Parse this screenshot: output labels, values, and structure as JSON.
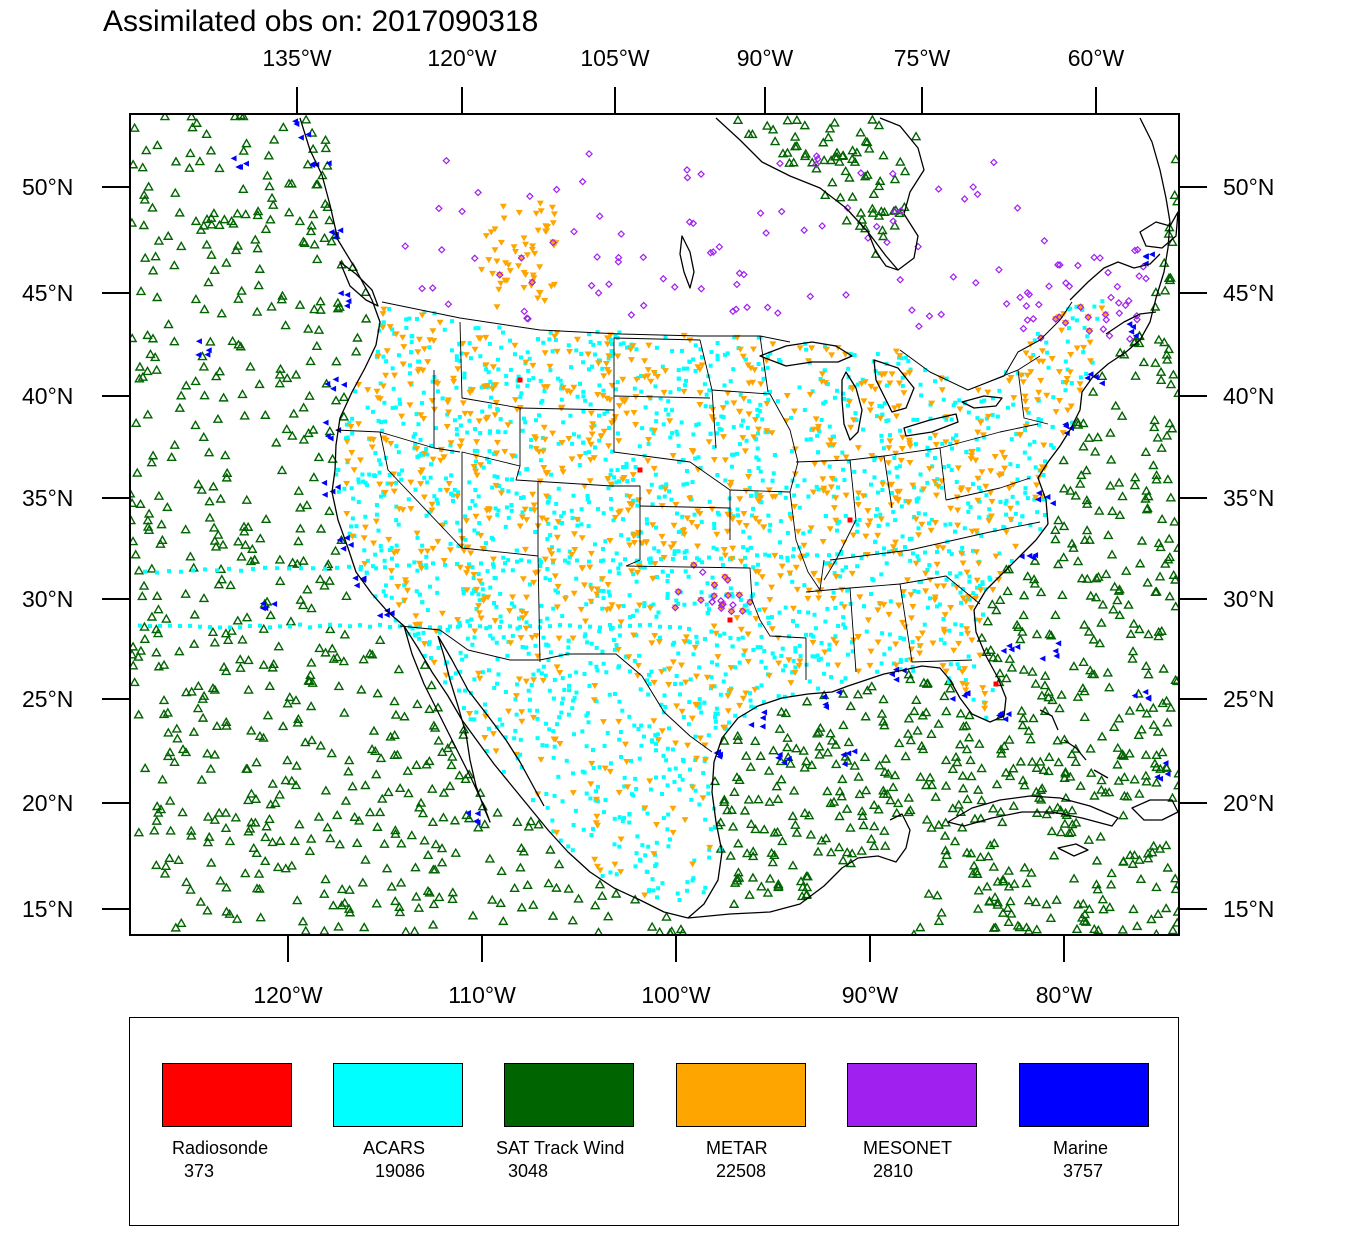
{
  "title": "Assimilated obs on: 2017090318",
  "axes": {
    "top_lon_labels": [
      "135°W",
      "120°W",
      "105°W",
      "90°W",
      "75°W",
      "60°W"
    ],
    "bottom_lon_labels": [
      "120°W",
      "110°W",
      "100°W",
      "90°W",
      "80°W"
    ],
    "lat_labels": [
      "50°N",
      "45°N",
      "40°N",
      "35°N",
      "30°N",
      "25°N",
      "20°N",
      "15°N"
    ]
  },
  "legend": [
    {
      "name": "Radiosonde",
      "count": "373",
      "color": "#ff0000"
    },
    {
      "name": "ACARS",
      "count": "19086",
      "color": "#00ffff"
    },
    {
      "name": "SAT Track Wind",
      "count": "3048",
      "color": "#006400"
    },
    {
      "name": "METAR",
      "count": "22508",
      "color": "#ffa500"
    },
    {
      "name": "MESONET",
      "count": "2810",
      "color": "#a020f0"
    },
    {
      "name": "Marine",
      "count": "3757",
      "color": "#0000ff"
    }
  ],
  "colors": {
    "coastline": "#000000",
    "radiosonde": "#ff0000",
    "acars": "#00ffff",
    "sat_track_wind": "#006400",
    "metar": "#ffa500",
    "mesonet": "#a020f0",
    "marine": "#0000ff"
  }
}
